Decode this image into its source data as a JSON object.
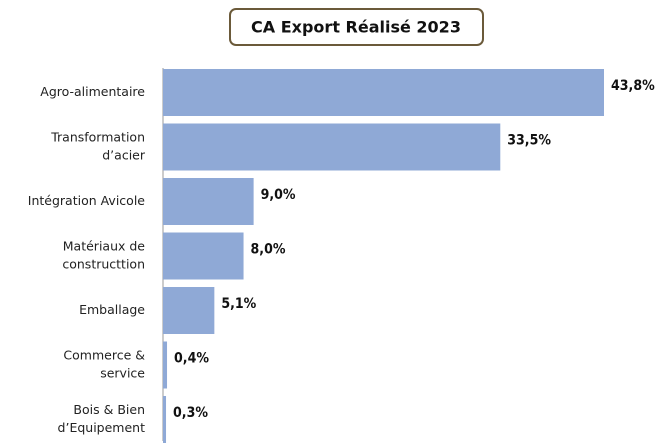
{
  "chart_data": {
    "type": "bar",
    "orientation": "horizontal",
    "title": "CA Export Réalisé 2023",
    "categories": [
      "Agro-alimentaire",
      "Transformation\nd’acier",
      "Intégration Avicole",
      "Matériaux de\nconstructtion",
      "Emballage",
      "Commerce &\nservice",
      "Bois & Bien\nd’Equipement"
    ],
    "values": [
      43.8,
      33.5,
      9.0,
      8.0,
      5.1,
      0.4,
      0.3
    ],
    "value_labels": [
      "43,8%",
      "33,5%",
      "9,0%",
      "8,0%",
      "5,1%",
      "0,4%",
      "0,3%"
    ],
    "color": "#8fa9d6"
  }
}
